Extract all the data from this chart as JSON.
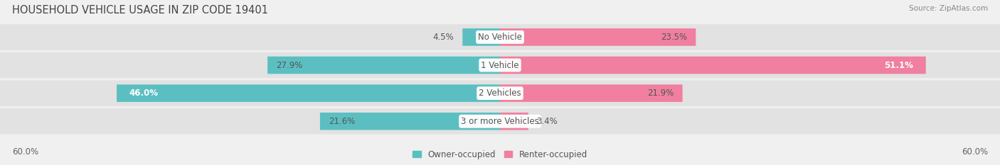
{
  "title": "HOUSEHOLD VEHICLE USAGE IN ZIP CODE 19401",
  "source": "Source: ZipAtlas.com",
  "categories": [
    "No Vehicle",
    "1 Vehicle",
    "2 Vehicles",
    "3 or more Vehicles"
  ],
  "owner_values": [
    4.5,
    27.9,
    46.0,
    21.6
  ],
  "renter_values": [
    23.5,
    51.1,
    21.9,
    3.4
  ],
  "owner_color": "#5bbfc2",
  "renter_color": "#f07fa0",
  "background_color": "#f0f0f0",
  "bar_bg_color": "#e2e2e2",
  "xlim": [
    -60,
    60
  ],
  "bar_height": 0.62,
  "label_fontsize": 8.5,
  "title_fontsize": 10.5,
  "legend_fontsize": 8.5,
  "owner_label_color_dark": "#555555",
  "owner_label_color_light": "#ffffff",
  "renter_label_color_dark": "#555555",
  "renter_label_color_light": "#ffffff"
}
